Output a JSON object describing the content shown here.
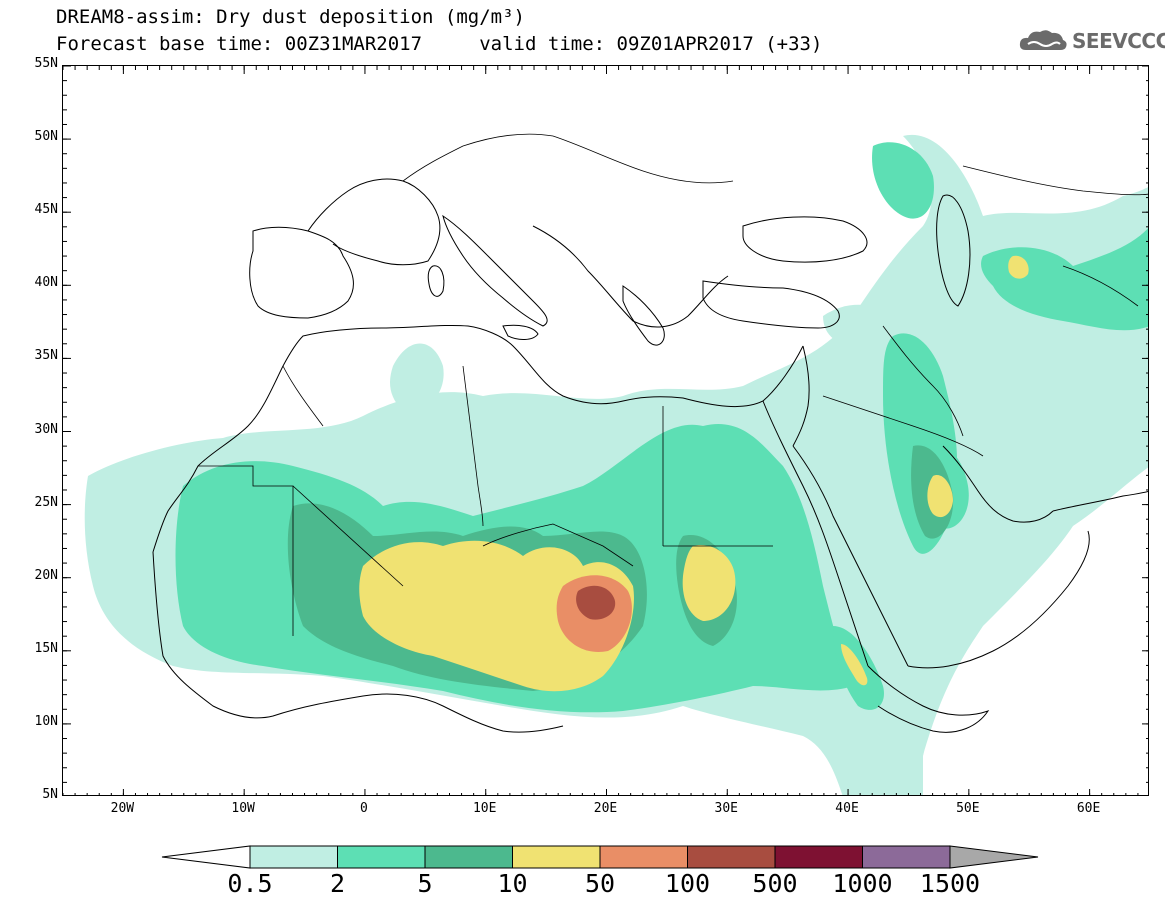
{
  "title": {
    "line1": "DREAM8-assim: Dry dust deposition (mg/m³)",
    "line2": "Forecast base time: 00Z31MAR2017     valid time: 09Z01APR2017 (+33)"
  },
  "logo": {
    "text": "SEEVCCC",
    "icon": "cloud-icon"
  },
  "map": {
    "lon_range": [
      -25,
      65
    ],
    "lat_range": [
      5,
      55
    ],
    "lat_ticks": [
      {
        "value": 55,
        "label": "55N"
      },
      {
        "value": 50,
        "label": "50N"
      },
      {
        "value": 45,
        "label": "45N"
      },
      {
        "value": 40,
        "label": "40N"
      },
      {
        "value": 35,
        "label": "35N"
      },
      {
        "value": 30,
        "label": "30N"
      },
      {
        "value": 25,
        "label": "25N"
      },
      {
        "value": 20,
        "label": "20N"
      },
      {
        "value": 15,
        "label": "15N"
      },
      {
        "value": 10,
        "label": "10N"
      },
      {
        "value": 5,
        "label": "5N"
      }
    ],
    "lon_ticks": [
      {
        "value": -20,
        "label": "20W"
      },
      {
        "value": -10,
        "label": "10W"
      },
      {
        "value": 0,
        "label": "0"
      },
      {
        "value": 10,
        "label": "10E"
      },
      {
        "value": 20,
        "label": "20E"
      },
      {
        "value": 30,
        "label": "30E"
      },
      {
        "value": 40,
        "label": "40E"
      },
      {
        "value": 50,
        "label": "50E"
      },
      {
        "value": 60,
        "label": "60E"
      }
    ]
  },
  "colorbar": {
    "labels": [
      "0.5",
      "2",
      "5",
      "10",
      "50",
      "100",
      "500",
      "1000",
      "1500"
    ],
    "colors": [
      "#c0eee3",
      "#5ddfb4",
      "#4cb98e",
      "#f0e272",
      "#e98e66",
      "#a84d40",
      "#7e1132",
      "#8c6a99"
    ],
    "low_arrow": "#ffffff",
    "high_arrow": "#a8a8a8"
  }
}
